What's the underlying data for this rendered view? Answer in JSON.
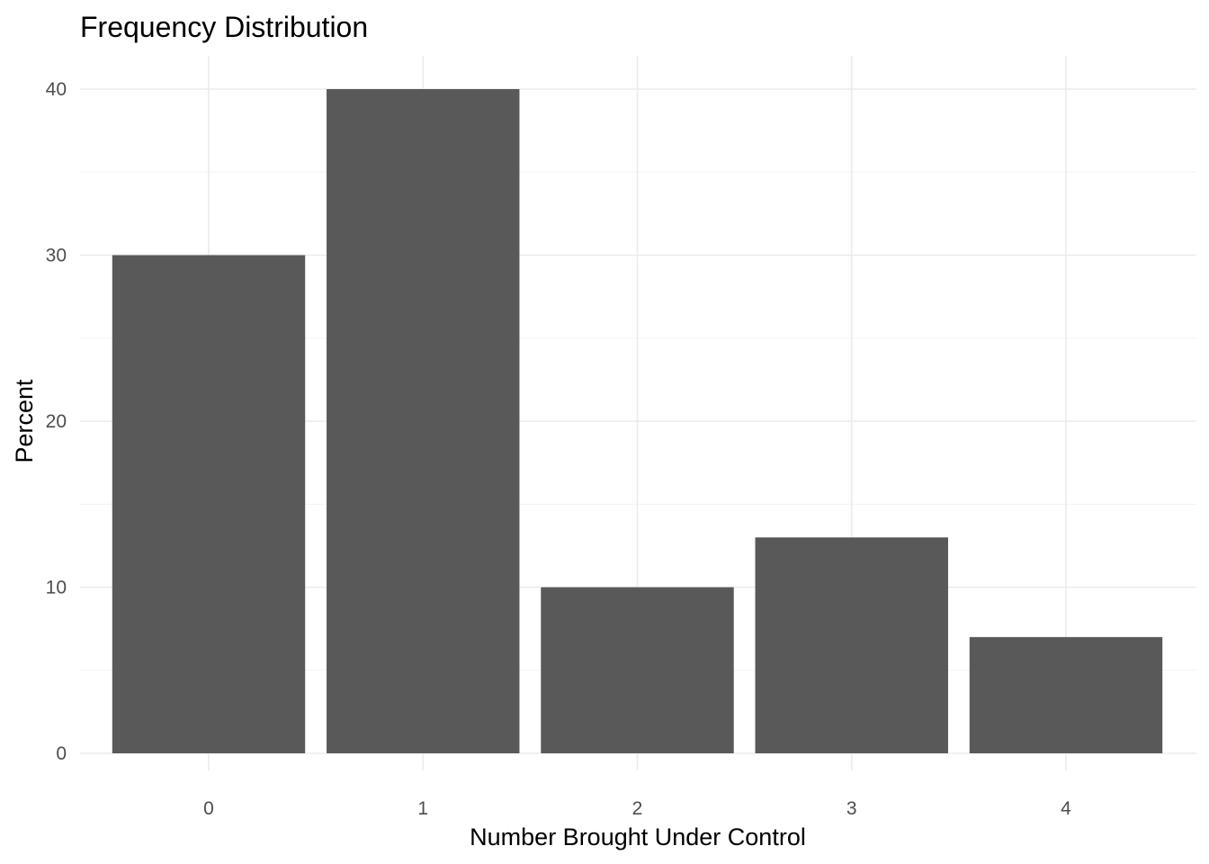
{
  "chart_data": {
    "type": "bar",
    "title": "Frequency Distribution",
    "xlabel": "Number Brought Under Control",
    "ylabel": "Percent",
    "categories": [
      "0",
      "1",
      "2",
      "3",
      "4"
    ],
    "values": [
      30,
      40,
      10,
      13,
      7
    ],
    "ylim": [
      -2,
      42
    ],
    "yticks": [
      0,
      10,
      20,
      30,
      40
    ],
    "yminor_ticks": [
      5,
      15,
      25,
      35
    ],
    "grid": true,
    "legend": "none",
    "bar_color": "#595959",
    "grid_color": "#ebebeb"
  }
}
